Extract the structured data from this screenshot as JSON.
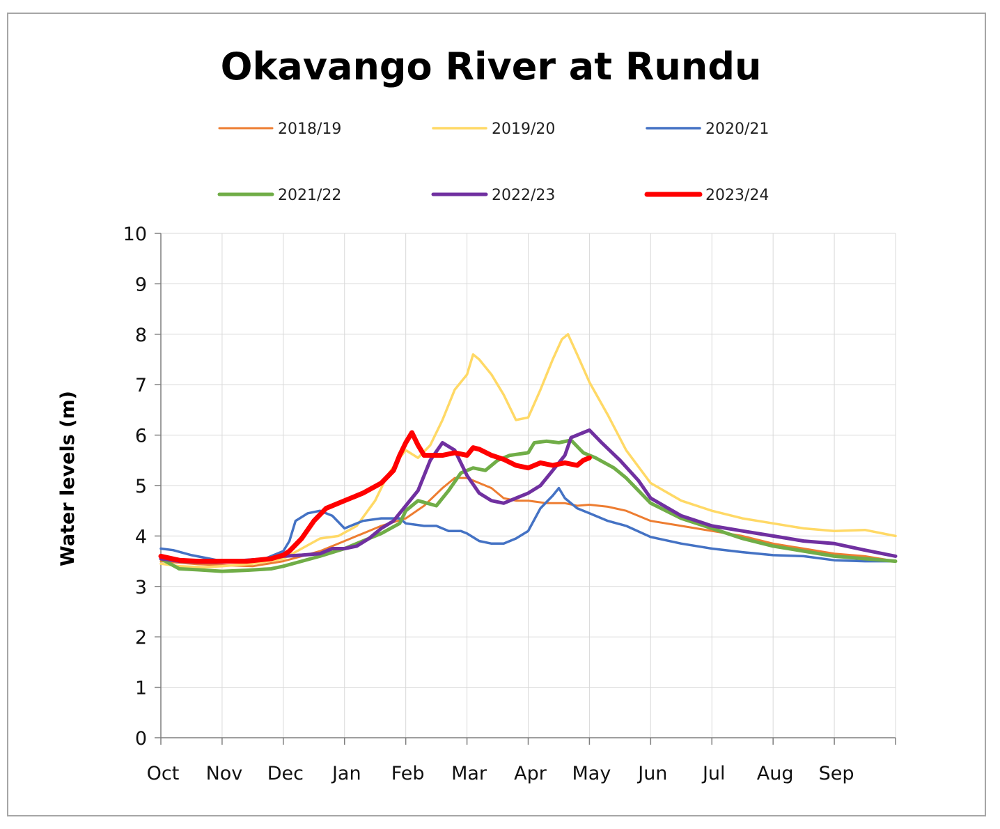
{
  "chart_data": {
    "type": "line",
    "title": "Okavango River at Rundu",
    "ylabel": "Water levels (m)",
    "xlabel": "",
    "ylim": [
      0,
      10
    ],
    "yticks": [
      0,
      1,
      2,
      3,
      4,
      5,
      6,
      7,
      8,
      9,
      10
    ],
    "categories": [
      "Oct",
      "Nov",
      "Dec",
      "Jan",
      "Feb",
      "Mar",
      "Apr",
      "May",
      "Jun",
      "Jul",
      "Aug",
      "Sep"
    ],
    "x_unit": "month index (0 = 1 Oct, 12 = 30 Sep)",
    "grid": true,
    "legend_position": "top",
    "series": [
      {
        "name": "2018/19",
        "color": "#ED7D31",
        "width": 3,
        "points": [
          [
            0,
            3.5
          ],
          [
            0.3,
            3.47
          ],
          [
            0.6,
            3.44
          ],
          [
            1,
            3.42
          ],
          [
            1.5,
            3.4
          ],
          [
            2,
            3.5
          ],
          [
            2.3,
            3.6
          ],
          [
            2.6,
            3.7
          ],
          [
            3,
            3.9
          ],
          [
            3.3,
            4.05
          ],
          [
            3.6,
            4.2
          ],
          [
            4,
            4.35
          ],
          [
            4.3,
            4.6
          ],
          [
            4.6,
            4.95
          ],
          [
            4.8,
            5.15
          ],
          [
            5,
            5.15
          ],
          [
            5.2,
            5.05
          ],
          [
            5.4,
            4.95
          ],
          [
            5.6,
            4.75
          ],
          [
            5.8,
            4.7
          ],
          [
            6,
            4.7
          ],
          [
            6.3,
            4.65
          ],
          [
            6.6,
            4.65
          ],
          [
            6.8,
            4.6
          ],
          [
            7,
            4.62
          ],
          [
            7.3,
            4.58
          ],
          [
            7.6,
            4.5
          ],
          [
            8,
            4.3
          ],
          [
            8.5,
            4.2
          ],
          [
            9,
            4.1
          ],
          [
            9.5,
            4.0
          ],
          [
            10,
            3.85
          ],
          [
            10.5,
            3.75
          ],
          [
            11,
            3.65
          ],
          [
            11.5,
            3.6
          ],
          [
            12,
            3.5
          ]
        ]
      },
      {
        "name": "2019/20",
        "color": "#FFD966",
        "width": 3.5,
        "points": [
          [
            0,
            3.45
          ],
          [
            0.3,
            3.4
          ],
          [
            0.7,
            3.38
          ],
          [
            1,
            3.4
          ],
          [
            1.5,
            3.45
          ],
          [
            2,
            3.55
          ],
          [
            2.3,
            3.75
          ],
          [
            2.6,
            3.95
          ],
          [
            2.9,
            4.0
          ],
          [
            3.2,
            4.2
          ],
          [
            3.5,
            4.7
          ],
          [
            3.7,
            5.2
          ],
          [
            3.9,
            5.55
          ],
          [
            4,
            5.7
          ],
          [
            4.2,
            5.55
          ],
          [
            4.4,
            5.8
          ],
          [
            4.6,
            6.3
          ],
          [
            4.8,
            6.9
          ],
          [
            5,
            7.2
          ],
          [
            5.1,
            7.6
          ],
          [
            5.2,
            7.5
          ],
          [
            5.4,
            7.2
          ],
          [
            5.6,
            6.8
          ],
          [
            5.8,
            6.3
          ],
          [
            6,
            6.35
          ],
          [
            6.2,
            6.9
          ],
          [
            6.4,
            7.5
          ],
          [
            6.55,
            7.9
          ],
          [
            6.65,
            8.0
          ],
          [
            6.8,
            7.6
          ],
          [
            7,
            7.05
          ],
          [
            7.3,
            6.4
          ],
          [
            7.6,
            5.7
          ],
          [
            8,
            5.05
          ],
          [
            8.5,
            4.7
          ],
          [
            9,
            4.5
          ],
          [
            9.5,
            4.35
          ],
          [
            10,
            4.25
          ],
          [
            10.5,
            4.15
          ],
          [
            11,
            4.1
          ],
          [
            11.5,
            4.12
          ],
          [
            12,
            4.0
          ]
        ]
      },
      {
        "name": "2020/21",
        "color": "#4472C4",
        "width": 3.5,
        "points": [
          [
            0,
            3.75
          ],
          [
            0.2,
            3.72
          ],
          [
            0.5,
            3.62
          ],
          [
            0.8,
            3.55
          ],
          [
            1,
            3.5
          ],
          [
            1.4,
            3.48
          ],
          [
            1.7,
            3.55
          ],
          [
            2,
            3.7
          ],
          [
            2.1,
            3.9
          ],
          [
            2.2,
            4.3
          ],
          [
            2.4,
            4.45
          ],
          [
            2.6,
            4.5
          ],
          [
            2.8,
            4.4
          ],
          [
            3,
            4.15
          ],
          [
            3.1,
            4.2
          ],
          [
            3.3,
            4.3
          ],
          [
            3.6,
            4.35
          ],
          [
            3.9,
            4.35
          ],
          [
            4,
            4.25
          ],
          [
            4.3,
            4.2
          ],
          [
            4.5,
            4.2
          ],
          [
            4.7,
            4.1
          ],
          [
            4.9,
            4.1
          ],
          [
            5,
            4.05
          ],
          [
            5.2,
            3.9
          ],
          [
            5.4,
            3.85
          ],
          [
            5.6,
            3.85
          ],
          [
            5.8,
            3.95
          ],
          [
            6,
            4.1
          ],
          [
            6.2,
            4.55
          ],
          [
            6.4,
            4.8
          ],
          [
            6.5,
            4.95
          ],
          [
            6.6,
            4.75
          ],
          [
            6.8,
            4.55
          ],
          [
            7,
            4.45
          ],
          [
            7.3,
            4.3
          ],
          [
            7.6,
            4.2
          ],
          [
            8,
            3.98
          ],
          [
            8.5,
            3.85
          ],
          [
            9,
            3.75
          ],
          [
            9.5,
            3.68
          ],
          [
            10,
            3.62
          ],
          [
            10.5,
            3.6
          ],
          [
            11,
            3.52
          ],
          [
            11.5,
            3.5
          ],
          [
            12,
            3.5
          ]
        ]
      },
      {
        "name": "2021/22",
        "color": "#70AD47",
        "width": 5,
        "points": [
          [
            0,
            3.55
          ],
          [
            0.3,
            3.35
          ],
          [
            0.6,
            3.33
          ],
          [
            1,
            3.3
          ],
          [
            1.4,
            3.32
          ],
          [
            1.8,
            3.35
          ],
          [
            2,
            3.4
          ],
          [
            2.3,
            3.5
          ],
          [
            2.6,
            3.6
          ],
          [
            3,
            3.75
          ],
          [
            3.3,
            3.9
          ],
          [
            3.6,
            4.05
          ],
          [
            3.9,
            4.25
          ],
          [
            4,
            4.5
          ],
          [
            4.2,
            4.7
          ],
          [
            4.5,
            4.6
          ],
          [
            4.7,
            4.9
          ],
          [
            4.9,
            5.25
          ],
          [
            5.1,
            5.35
          ],
          [
            5.3,
            5.3
          ],
          [
            5.5,
            5.5
          ],
          [
            5.7,
            5.6
          ],
          [
            6,
            5.65
          ],
          [
            6.1,
            5.85
          ],
          [
            6.3,
            5.88
          ],
          [
            6.5,
            5.85
          ],
          [
            6.7,
            5.9
          ],
          [
            6.9,
            5.65
          ],
          [
            7.1,
            5.55
          ],
          [
            7.4,
            5.35
          ],
          [
            7.6,
            5.15
          ],
          [
            7.8,
            4.9
          ],
          [
            8,
            4.65
          ],
          [
            8.5,
            4.35
          ],
          [
            9,
            4.15
          ],
          [
            9.5,
            3.95
          ],
          [
            10,
            3.8
          ],
          [
            10.5,
            3.7
          ],
          [
            11,
            3.6
          ],
          [
            11.5,
            3.55
          ],
          [
            12,
            3.5
          ]
        ]
      },
      {
        "name": "2022/23",
        "color": "#7030A0",
        "width": 5,
        "points": [
          [
            0,
            3.55
          ],
          [
            0.3,
            3.5
          ],
          [
            0.6,
            3.48
          ],
          [
            1,
            3.48
          ],
          [
            1.4,
            3.52
          ],
          [
            1.8,
            3.55
          ],
          [
            2,
            3.6
          ],
          [
            2.3,
            3.62
          ],
          [
            2.6,
            3.65
          ],
          [
            2.8,
            3.75
          ],
          [
            3,
            3.75
          ],
          [
            3.2,
            3.8
          ],
          [
            3.4,
            3.95
          ],
          [
            3.6,
            4.15
          ],
          [
            3.8,
            4.3
          ],
          [
            4,
            4.6
          ],
          [
            4.2,
            4.9
          ],
          [
            4.4,
            5.5
          ],
          [
            4.6,
            5.85
          ],
          [
            4.8,
            5.7
          ],
          [
            5,
            5.2
          ],
          [
            5.2,
            4.85
          ],
          [
            5.4,
            4.7
          ],
          [
            5.6,
            4.65
          ],
          [
            5.8,
            4.75
          ],
          [
            6,
            4.85
          ],
          [
            6.2,
            5.0
          ],
          [
            6.4,
            5.3
          ],
          [
            6.6,
            5.6
          ],
          [
            6.7,
            5.95
          ],
          [
            6.9,
            6.05
          ],
          [
            7,
            6.1
          ],
          [
            7.2,
            5.85
          ],
          [
            7.5,
            5.5
          ],
          [
            7.8,
            5.1
          ],
          [
            8,
            4.75
          ],
          [
            8.5,
            4.4
          ],
          [
            9,
            4.2
          ],
          [
            9.5,
            4.1
          ],
          [
            10,
            4.0
          ],
          [
            10.5,
            3.9
          ],
          [
            11,
            3.85
          ],
          [
            11.5,
            3.72
          ],
          [
            12,
            3.6
          ]
        ]
      },
      {
        "name": "2023/24",
        "color": "#FF0000",
        "width": 7,
        "points": [
          [
            0,
            3.6
          ],
          [
            0.3,
            3.52
          ],
          [
            0.6,
            3.5
          ],
          [
            1,
            3.5
          ],
          [
            1.4,
            3.5
          ],
          [
            1.8,
            3.55
          ],
          [
            2,
            3.62
          ],
          [
            2.1,
            3.7
          ],
          [
            2.3,
            3.95
          ],
          [
            2.5,
            4.3
          ],
          [
            2.7,
            4.55
          ],
          [
            3,
            4.7
          ],
          [
            3.3,
            4.85
          ],
          [
            3.6,
            5.05
          ],
          [
            3.8,
            5.3
          ],
          [
            3.9,
            5.6
          ],
          [
            4,
            5.85
          ],
          [
            4.1,
            6.05
          ],
          [
            4.2,
            5.8
          ],
          [
            4.3,
            5.6
          ],
          [
            4.6,
            5.6
          ],
          [
            4.8,
            5.65
          ],
          [
            5,
            5.6
          ],
          [
            5.1,
            5.75
          ],
          [
            5.2,
            5.72
          ],
          [
            5.4,
            5.6
          ],
          [
            5.6,
            5.52
          ],
          [
            5.8,
            5.4
          ],
          [
            6,
            5.35
          ],
          [
            6.2,
            5.45
          ],
          [
            6.4,
            5.4
          ],
          [
            6.6,
            5.45
          ],
          [
            6.8,
            5.4
          ],
          [
            6.9,
            5.5
          ],
          [
            7,
            5.55
          ]
        ]
      }
    ]
  }
}
